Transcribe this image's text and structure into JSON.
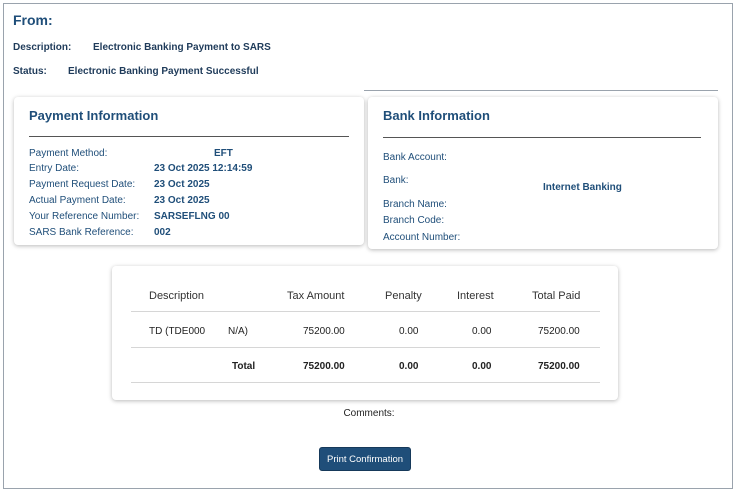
{
  "header": {
    "title": "From:",
    "description_label": "Description:",
    "description_value": "Electronic Banking Payment to SARS",
    "status_label": "Status:",
    "status_value": "Electronic Banking Payment Successful"
  },
  "payment_info": {
    "title": "Payment Information",
    "rows": [
      {
        "label": "Payment Method:",
        "value": "EFT"
      },
      {
        "label": "Entry Date:",
        "value": "23 Oct 2025 12:14:59"
      },
      {
        "label": "Payment Request Date:",
        "value": "23 Oct 2025"
      },
      {
        "label": "Actual Payment Date:",
        "value": "23 Oct 2025"
      },
      {
        "label": "Your Reference Number:",
        "value": "SARSEFLNG 00"
      },
      {
        "label": "SARS Bank Reference:",
        "value": "002"
      }
    ]
  },
  "bank_info": {
    "title": "Bank Information",
    "rows": [
      {
        "label": "Bank Account:",
        "value": ""
      },
      {
        "label": "Bank:",
        "value": "Internet Banking"
      },
      {
        "label": "Branch Name:",
        "value": ""
      },
      {
        "label": "Branch Code:",
        "value": ""
      },
      {
        "label": "Account Number:",
        "value": ""
      }
    ]
  },
  "table": {
    "headers": [
      "Description",
      "Tax Amount",
      "Penalty",
      "Interest",
      "Total Paid"
    ],
    "row": {
      "description": "TD (TDE000",
      "extra": "N/A)",
      "tax_amount": "75200.00",
      "penalty": "0.00",
      "interest": "0.00",
      "total_paid": "75200.00"
    },
    "total": {
      "label": "Total",
      "tax_amount": "75200.00",
      "penalty": "0.00",
      "interest": "0.00",
      "total_paid": "75200.00"
    }
  },
  "comments_label": "Comments:",
  "print_button": "Print Confirmation"
}
